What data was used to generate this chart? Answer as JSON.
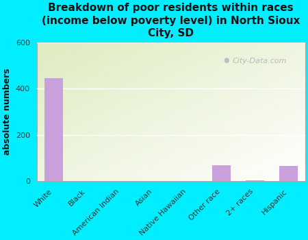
{
  "title": "Breakdown of poor residents within races\n(income below poverty level) in North Sioux\nCity, SD",
  "ylabel": "absolute numbers",
  "categories": [
    "White",
    "Black",
    "American Indian",
    "Asian",
    "Native Hawaiian",
    "Other race",
    "2+ races",
    "Hispanic"
  ],
  "values": [
    445,
    0,
    0,
    0,
    0,
    70,
    5,
    65
  ],
  "bar_color": "#c9a0dc",
  "background_color": "#00eeff",
  "plot_bg_color_top": "#deecc0",
  "plot_bg_color_bottom": "#f8fff8",
  "ylim": [
    0,
    600
  ],
  "yticks": [
    0,
    200,
    400,
    600
  ],
  "grid_color": "#ffffff",
  "watermark": "City-Data.com",
  "title_fontsize": 11,
  "ylabel_fontsize": 9,
  "tick_fontsize": 8
}
